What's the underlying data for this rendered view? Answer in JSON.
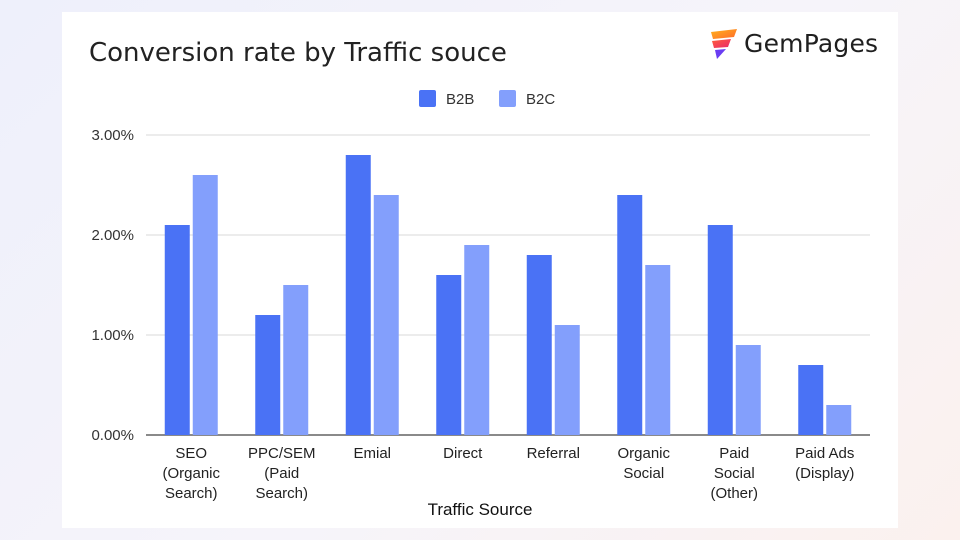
{
  "brand": {
    "name": "GemPages",
    "logo_icon": "gempages-logo-icon"
  },
  "chart_data": {
    "type": "bar",
    "title": "Conversion rate by Traffic souce",
    "xlabel": "Traffic Source",
    "ylabel": "",
    "categories": [
      [
        "SEO",
        "(Organic",
        "Search)"
      ],
      [
        "PPC/SEM",
        "(Paid",
        "Search)"
      ],
      [
        "Emial"
      ],
      [
        "Direct"
      ],
      [
        "Referral"
      ],
      [
        "Organic",
        "Social"
      ],
      [
        "Paid",
        "Social",
        "(Other)"
      ],
      [
        "Paid Ads",
        "(Display)"
      ]
    ],
    "series": [
      {
        "name": "B2B",
        "color": "#4a72f5",
        "values": [
          2.1,
          1.2,
          2.8,
          1.6,
          1.8,
          2.4,
          2.1,
          0.7
        ]
      },
      {
        "name": "B2C",
        "color": "#839ffc",
        "values": [
          2.6,
          1.5,
          2.4,
          1.9,
          1.1,
          1.7,
          0.9,
          0.3
        ]
      }
    ],
    "ylim": [
      0,
      3
    ],
    "yticks": [
      "0.00%",
      "1.00%",
      "2.00%",
      "3.00%"
    ],
    "grid": true,
    "legend": "top-center"
  }
}
